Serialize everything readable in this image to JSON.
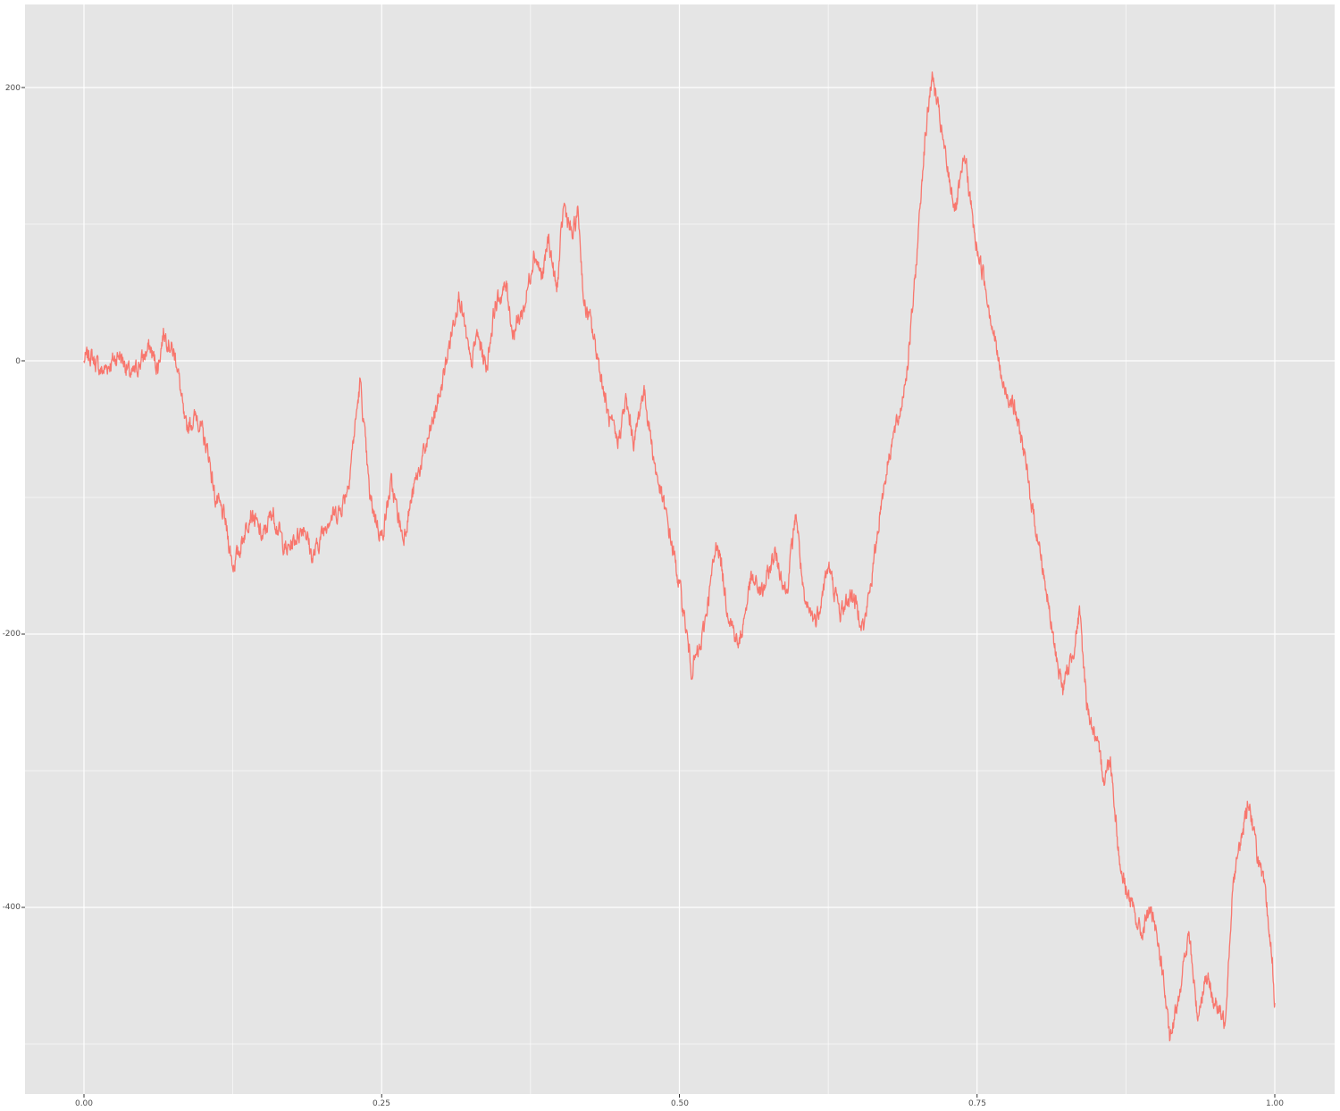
{
  "chart_data": {
    "type": "line",
    "title": "",
    "xlabel": "",
    "ylabel": "",
    "xlim": [
      -0.05,
      1.05
    ],
    "ylim": [
      -530,
      260
    ],
    "x_ticks": [
      {
        "value": 0.0,
        "label": "0.00"
      },
      {
        "value": 0.25,
        "label": "0.25"
      },
      {
        "value": 0.5,
        "label": "0.50"
      },
      {
        "value": 0.75,
        "label": "0.75"
      },
      {
        "value": 1.0,
        "label": "1.00"
      }
    ],
    "y_ticks": [
      {
        "value": 200,
        "label": "200"
      },
      {
        "value": 0,
        "label": "0"
      },
      {
        "value": -200,
        "label": "-200"
      },
      {
        "value": -400,
        "label": "-400"
      }
    ],
    "x_minor_breaks": [
      0.125,
      0.375,
      0.625,
      0.875
    ],
    "y_minor_breaks": [
      100,
      -100,
      -300,
      -500
    ],
    "grid": true,
    "legend": "none",
    "colors": {
      "panel": "#e5e5e5",
      "grid": "#ffffff",
      "line": "#f8766d",
      "axis_tick": "#333333"
    },
    "series": [
      {
        "anchors": [
          [
            0.0,
            0
          ],
          [
            0.005,
            5
          ],
          [
            0.015,
            -8
          ],
          [
            0.03,
            5
          ],
          [
            0.04,
            -12
          ],
          [
            0.055,
            10
          ],
          [
            0.062,
            -5
          ],
          [
            0.067,
            22
          ],
          [
            0.078,
            0
          ],
          [
            0.085,
            -50
          ],
          [
            0.095,
            -40
          ],
          [
            0.105,
            -70
          ],
          [
            0.11,
            -100
          ],
          [
            0.118,
            -115
          ],
          [
            0.125,
            -150
          ],
          [
            0.13,
            -140
          ],
          [
            0.14,
            -110
          ],
          [
            0.15,
            -130
          ],
          [
            0.158,
            -110
          ],
          [
            0.17,
            -140
          ],
          [
            0.185,
            -120
          ],
          [
            0.192,
            -145
          ],
          [
            0.205,
            -115
          ],
          [
            0.215,
            -110
          ],
          [
            0.222,
            -90
          ],
          [
            0.232,
            -15
          ],
          [
            0.24,
            -100
          ],
          [
            0.25,
            -130
          ],
          [
            0.258,
            -90
          ],
          [
            0.268,
            -130
          ],
          [
            0.278,
            -90
          ],
          [
            0.29,
            -55
          ],
          [
            0.3,
            -20
          ],
          [
            0.315,
            50
          ],
          [
            0.325,
            -5
          ],
          [
            0.33,
            20
          ],
          [
            0.338,
            -5
          ],
          [
            0.345,
            40
          ],
          [
            0.355,
            55
          ],
          [
            0.36,
            20
          ],
          [
            0.37,
            40
          ],
          [
            0.378,
            80
          ],
          [
            0.385,
            60
          ],
          [
            0.39,
            90
          ],
          [
            0.397,
            50
          ],
          [
            0.403,
            115
          ],
          [
            0.41,
            90
          ],
          [
            0.415,
            110
          ],
          [
            0.42,
            40
          ],
          [
            0.425,
            30
          ],
          [
            0.432,
            0
          ],
          [
            0.44,
            -40
          ],
          [
            0.448,
            -60
          ],
          [
            0.455,
            -30
          ],
          [
            0.462,
            -60
          ],
          [
            0.47,
            -20
          ],
          [
            0.475,
            -50
          ],
          [
            0.48,
            -80
          ],
          [
            0.488,
            -110
          ],
          [
            0.495,
            -140
          ],
          [
            0.503,
            -180
          ],
          [
            0.51,
            -225
          ],
          [
            0.518,
            -210
          ],
          [
            0.525,
            -170
          ],
          [
            0.532,
            -130
          ],
          [
            0.54,
            -180
          ],
          [
            0.55,
            -210
          ],
          [
            0.56,
            -160
          ],
          [
            0.57,
            -170
          ],
          [
            0.58,
            -140
          ],
          [
            0.59,
            -170
          ],
          [
            0.598,
            -110
          ],
          [
            0.605,
            -180
          ],
          [
            0.615,
            -190
          ],
          [
            0.625,
            -150
          ],
          [
            0.635,
            -185
          ],
          [
            0.645,
            -170
          ],
          [
            0.655,
            -195
          ],
          [
            0.663,
            -150
          ],
          [
            0.67,
            -100
          ],
          [
            0.678,
            -60
          ],
          [
            0.685,
            -40
          ],
          [
            0.692,
            0
          ],
          [
            0.698,
            60
          ],
          [
            0.705,
            150
          ],
          [
            0.712,
            210
          ],
          [
            0.718,
            180
          ],
          [
            0.725,
            140
          ],
          [
            0.732,
            110
          ],
          [
            0.74,
            150
          ],
          [
            0.748,
            90
          ],
          [
            0.756,
            60
          ],
          [
            0.764,
            20
          ],
          [
            0.772,
            -20
          ],
          [
            0.78,
            -30
          ],
          [
            0.788,
            -60
          ],
          [
            0.795,
            -100
          ],
          [
            0.805,
            -150
          ],
          [
            0.815,
            -210
          ],
          [
            0.822,
            -240
          ],
          [
            0.83,
            -215
          ],
          [
            0.836,
            -185
          ],
          [
            0.842,
            -250
          ],
          [
            0.85,
            -280
          ],
          [
            0.857,
            -305
          ],
          [
            0.862,
            -290
          ],
          [
            0.87,
            -370
          ],
          [
            0.88,
            -400
          ],
          [
            0.888,
            -420
          ],
          [
            0.895,
            -400
          ],
          [
            0.905,
            -440
          ],
          [
            0.912,
            -500
          ],
          [
            0.92,
            -460
          ],
          [
            0.928,
            -420
          ],
          [
            0.935,
            -480
          ],
          [
            0.942,
            -450
          ],
          [
            0.95,
            -470
          ],
          [
            0.958,
            -485
          ],
          [
            0.965,
            -380
          ],
          [
            0.972,
            -350
          ],
          [
            0.978,
            -320
          ],
          [
            0.985,
            -360
          ],
          [
            0.992,
            -390
          ],
          [
            0.998,
            -440
          ],
          [
            1.0,
            -470
          ]
        ],
        "n_points": 3000,
        "noise_amplitude": 5,
        "seed": 7
      }
    ]
  },
  "tick_labels": {
    "x0": "0.00",
    "x1": "0.25",
    "x2": "0.50",
    "x3": "0.75",
    "x4": "1.00",
    "y0": "200",
    "y1": "0",
    "y2": "-200",
    "y3": "-400"
  }
}
